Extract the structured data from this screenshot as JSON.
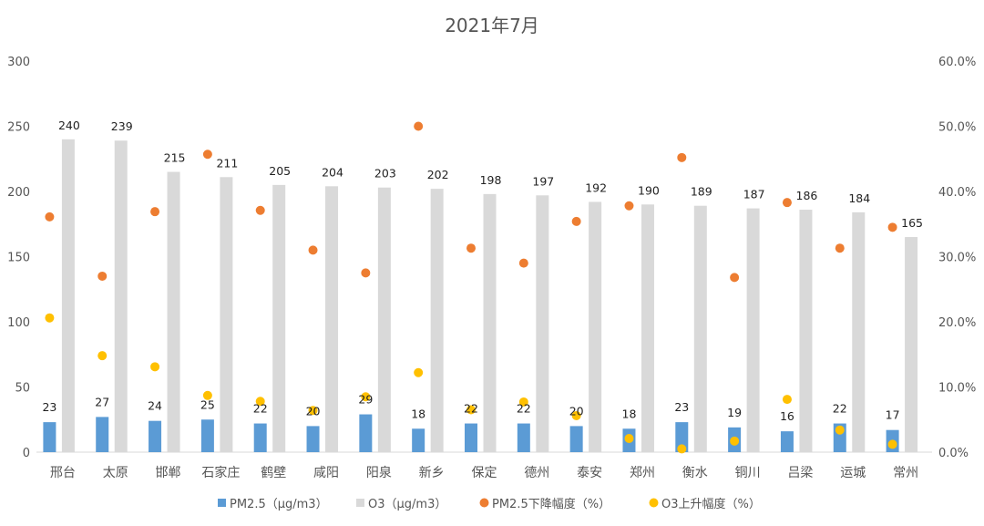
{
  "chart_data": {
    "type": "bar",
    "title": "2021年7月",
    "categories": [
      "邢台",
      "太原",
      "邯郸",
      "石家庄",
      "鹤壁",
      "咸阳",
      "阳泉",
      "新乡",
      "保定",
      "德州",
      "泰安",
      "郑州",
      "衡水",
      "铜川",
      "吕梁",
      "运城",
      "常州"
    ],
    "series": [
      {
        "name": "PM2.5（μg/m3）",
        "type": "bar",
        "axis": "left",
        "color": "#5b9bd5",
        "values": [
          23,
          27,
          24,
          25,
          22,
          20,
          29,
          18,
          22,
          22,
          20,
          18,
          23,
          19,
          16,
          22,
          17
        ]
      },
      {
        "name": "O3（μg/m3）",
        "type": "bar",
        "axis": "left",
        "color": "#d9d9d9",
        "values": [
          240,
          239,
          215,
          211,
          205,
          204,
          203,
          202,
          198,
          197,
          192,
          190,
          189,
          187,
          186,
          184,
          165
        ]
      },
      {
        "name": "PM2.5下降幅度（%）",
        "type": "scatter",
        "axis": "right",
        "color": "#ed7d31",
        "values": [
          36.1,
          27.0,
          36.9,
          45.7,
          37.1,
          31.0,
          27.5,
          50.0,
          31.3,
          29.0,
          35.4,
          37.8,
          45.2,
          26.8,
          38.3,
          31.3,
          34.5
        ]
      },
      {
        "name": "O3上升幅度（%）",
        "type": "scatter",
        "axis": "right",
        "color": "#ffc000",
        "values": [
          20.6,
          14.8,
          13.1,
          8.7,
          7.8,
          6.4,
          8.5,
          12.2,
          6.5,
          7.7,
          5.6,
          2.1,
          0.5,
          1.7,
          8.1,
          3.4,
          1.2
        ]
      }
    ],
    "ylim_left": [
      0,
      300
    ],
    "yticks_left": [
      "0",
      "50",
      "100",
      "150",
      "200",
      "250",
      "300"
    ],
    "ylim_right": [
      0,
      60
    ],
    "yticks_right": [
      "0.0%",
      "10.0%",
      "20.0%",
      "30.0%",
      "40.0%",
      "50.0%",
      "60.0%"
    ],
    "grid": false,
    "legend_position": "bottom"
  }
}
